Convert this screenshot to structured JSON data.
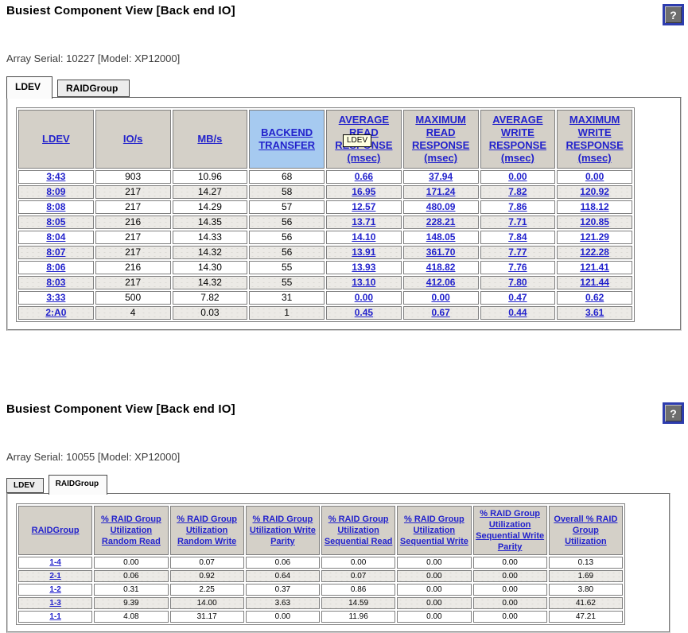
{
  "page": {
    "colors": {
      "header_bg": "#d4d0c8",
      "highlight_header_bg": "#a6caf0",
      "link_color": "#2222cc",
      "alt_row_bg": "#eceae6",
      "help_border": "#2d3cae"
    },
    "sections": [
      {
        "title": "Busiest Component View [Back end IO]",
        "help_icon": "?",
        "array_info": "Array Serial: 10227 [Model: XP12000]",
        "tooltip": "LDEV",
        "tabs": [
          {
            "label": "LDEV",
            "active": true
          },
          {
            "label": "RAIDGroup",
            "active": false
          }
        ],
        "table": {
          "columns": [
            {
              "label": "LDEV",
              "highlight": false
            },
            {
              "label": "IO/s",
              "highlight": false
            },
            {
              "label": "MB/s",
              "highlight": false
            },
            {
              "label": "BACKEND TRANSFER",
              "highlight": true
            },
            {
              "label": "AVERAGE READ RESPONSE (msec)",
              "highlight": false
            },
            {
              "label": "MAXIMUM READ RESPONSE (msec)",
              "highlight": false
            },
            {
              "label": "AVERAGE WRITE RESPONSE (msec)",
              "highlight": false
            },
            {
              "label": "MAXIMUM WRITE RESPONSE (msec)",
              "highlight": false
            }
          ],
          "link_columns": [
            0,
            4,
            5,
            6,
            7
          ],
          "rows": [
            [
              "3:43",
              "903",
              "10.96",
              "68",
              "0.66",
              "37.94",
              "0.00",
              "0.00"
            ],
            [
              "8:09",
              "217",
              "14.27",
              "58",
              "16.95",
              "171.24",
              "7.82",
              "120.92"
            ],
            [
              "8:08",
              "217",
              "14.29",
              "57",
              "12.57",
              "480.09",
              "7.86",
              "118.12"
            ],
            [
              "8:05",
              "216",
              "14.35",
              "56",
              "13.71",
              "228.21",
              "7.71",
              "120.85"
            ],
            [
              "8:04",
              "217",
              "14.33",
              "56",
              "14.10",
              "148.05",
              "7.84",
              "121.29"
            ],
            [
              "8:07",
              "217",
              "14.32",
              "56",
              "13.91",
              "361.70",
              "7.77",
              "122.28"
            ],
            [
              "8:06",
              "216",
              "14.30",
              "55",
              "13.93",
              "418.82",
              "7.76",
              "121.41"
            ],
            [
              "8:03",
              "217",
              "14.32",
              "55",
              "13.10",
              "412.06",
              "7.80",
              "121.44"
            ],
            [
              "3:33",
              "500",
              "7.82",
              "31",
              "0.00",
              "0.00",
              "0.47",
              "0.62"
            ],
            [
              "2:A0",
              "4",
              "0.03",
              "1",
              "0.45",
              "0.67",
              "0.44",
              "3.61"
            ]
          ]
        }
      },
      {
        "title": "Busiest Component View [Back end IO]",
        "help_icon": "?",
        "array_info": "Array Serial: 10055 [Model: XP12000]",
        "tabs": [
          {
            "label": "LDEV",
            "active": false
          },
          {
            "label": "RAIDGroup",
            "active": true
          }
        ],
        "table": {
          "columns": [
            {
              "label": "RAIDGroup",
              "highlight": false
            },
            {
              "label": "% RAID Group Utilization Random Read",
              "highlight": false
            },
            {
              "label": "% RAID Group Utilization Random Write",
              "highlight": false
            },
            {
              "label": "% RAID Group Utilization Write Parity",
              "highlight": false
            },
            {
              "label": "% RAID Group Utilization Sequential Read",
              "highlight": false
            },
            {
              "label": "% RAID Group Utilization Sequential Write",
              "highlight": false
            },
            {
              "label": "% RAID Group Utilization Sequential Write Parity",
              "highlight": false
            },
            {
              "label": "Overall % RAID Group Utilization",
              "highlight": false
            }
          ],
          "link_columns": [
            0
          ],
          "rows": [
            [
              "1-4",
              "0.00",
              "0.07",
              "0.06",
              "0.00",
              "0.00",
              "0.00",
              "0.13"
            ],
            [
              "2-1",
              "0.06",
              "0.92",
              "0.64",
              "0.07",
              "0.00",
              "0.00",
              "1.69"
            ],
            [
              "1-2",
              "0.31",
              "2.25",
              "0.37",
              "0.86",
              "0.00",
              "0.00",
              "3.80"
            ],
            [
              "1-3",
              "9.39",
              "14.00",
              "3.63",
              "14.59",
              "0.00",
              "0.00",
              "41.62"
            ],
            [
              "1-1",
              "4.08",
              "31.17",
              "0.00",
              "11.96",
              "0.00",
              "0.00",
              "47.21"
            ]
          ]
        }
      }
    ]
  }
}
